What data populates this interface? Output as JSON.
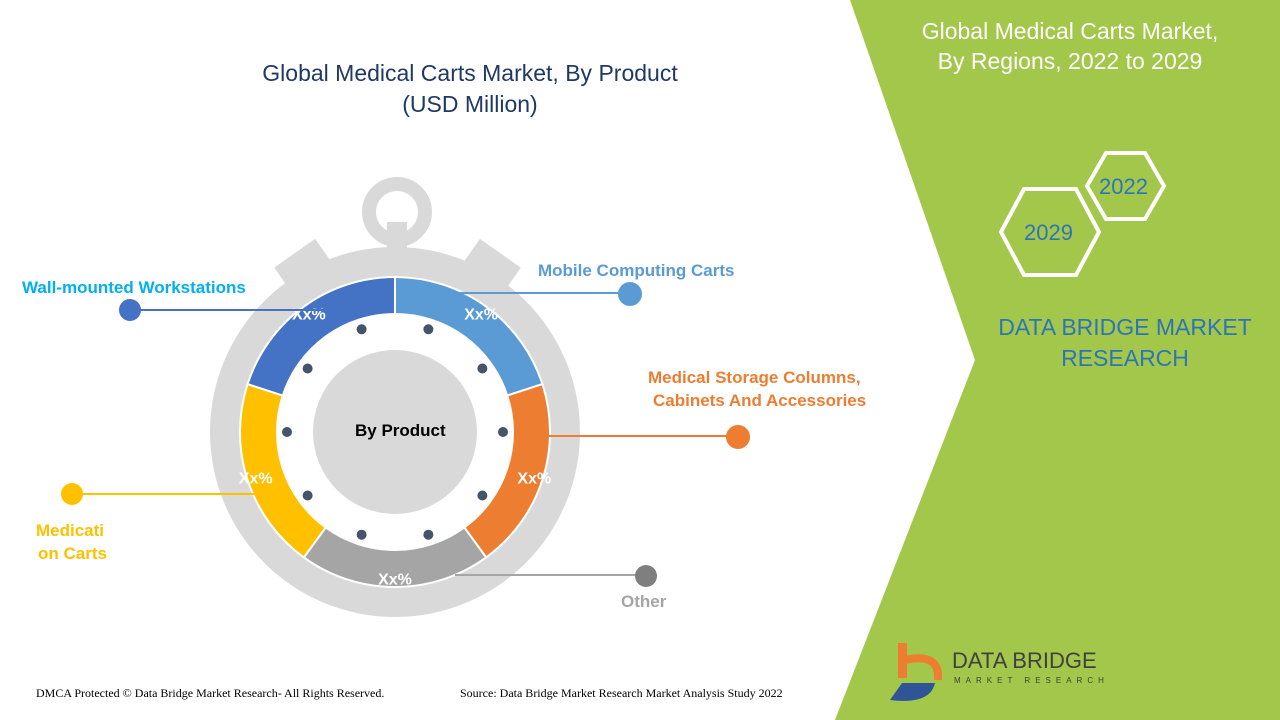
{
  "header": {
    "title_line1": "Global Medical Carts Market, By Product",
    "title_line2": "(USD Million)"
  },
  "right_panel": {
    "title_line1": "Global Medical Carts Market,",
    "title_line2": "By Regions,  2022 to 2029",
    "years": [
      "2022",
      "2029"
    ],
    "brand_line1": "DATA BRIDGE MARKET",
    "brand_line2": "RESEARCH",
    "color": "#a3c74a"
  },
  "logo": {
    "name": "DATA BRIDGE",
    "sub": "MARKET RESEARCH"
  },
  "footer": {
    "left": "DMCA Protected © Data Bridge Market Research- All Rights Reserved.",
    "right": "Source: Data Bridge Market Research Market Analysis Study 2022"
  },
  "chart_data": {
    "type": "pie",
    "center_label": "By Product",
    "slices": [
      {
        "name": "Mobile Computing Carts",
        "value_label": "Xx%",
        "share": 20,
        "color": "#5b9bd5"
      },
      {
        "name": "Medical Storage Columns, Cabinets And Accessories",
        "value_label": "Xx%",
        "share": 20,
        "color": "#ed7d31"
      },
      {
        "name": "Other",
        "value_label": "Xx%",
        "share": 20,
        "color": "#a5a5a5"
      },
      {
        "name": "Medication Carts",
        "value_label": "Xx%",
        "share": 20,
        "color": "#ffc000"
      },
      {
        "name": "Wall-mounted Workstations",
        "value_label": "Xx%",
        "share": 20,
        "color": "#4472c4"
      }
    ],
    "legend_labels": {
      "wall": "Wall-mounted Workstations",
      "mobile": "Mobile Computing Carts",
      "storage1": "Medical Storage Columns,",
      "storage2": "Cabinets And Accessories",
      "med1": "Medicati",
      "med2": "on Carts",
      "other": "Other"
    }
  }
}
